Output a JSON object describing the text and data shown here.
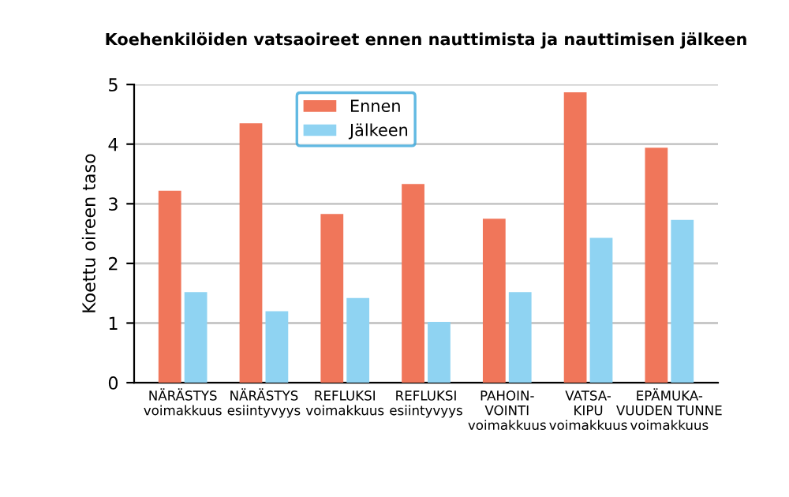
{
  "chart_data": {
    "type": "bar",
    "title": "Koehenkilöiden vatsaoireet ennen nauttimista ja nauttimisen jälkeen",
    "ylabel": "Koettu oireen taso",
    "categories": [
      "NÄRÄSTYS\nvoimakkuus",
      "NÄRÄSTYS\nesiintyvyys",
      "REFLUKSI\nvoimakkuus",
      "REFLUKSI\nesiintyvyys",
      "PAHOIN-\nVOINTI\nvoimakkuus",
      "VATSA-\nKIPU\nvoimakkuus",
      "EPÄMUKA-\nVUUDEN TUNNE\nvoimakkuus"
    ],
    "series": [
      {
        "name": "Ennen",
        "color": "#f0765a",
        "values": [
          3.22,
          4.35,
          2.83,
          3.33,
          2.75,
          4.87,
          3.94
        ]
      },
      {
        "name": "Jälkeen",
        "color": "#8fd3f2",
        "values": [
          1.52,
          1.2,
          1.42,
          1.02,
          1.52,
          2.43,
          2.73
        ]
      }
    ],
    "ylim": [
      0,
      5
    ],
    "yticks": [
      0,
      1,
      2,
      3,
      4,
      5
    ],
    "grid": "y",
    "legend": "top center"
  }
}
